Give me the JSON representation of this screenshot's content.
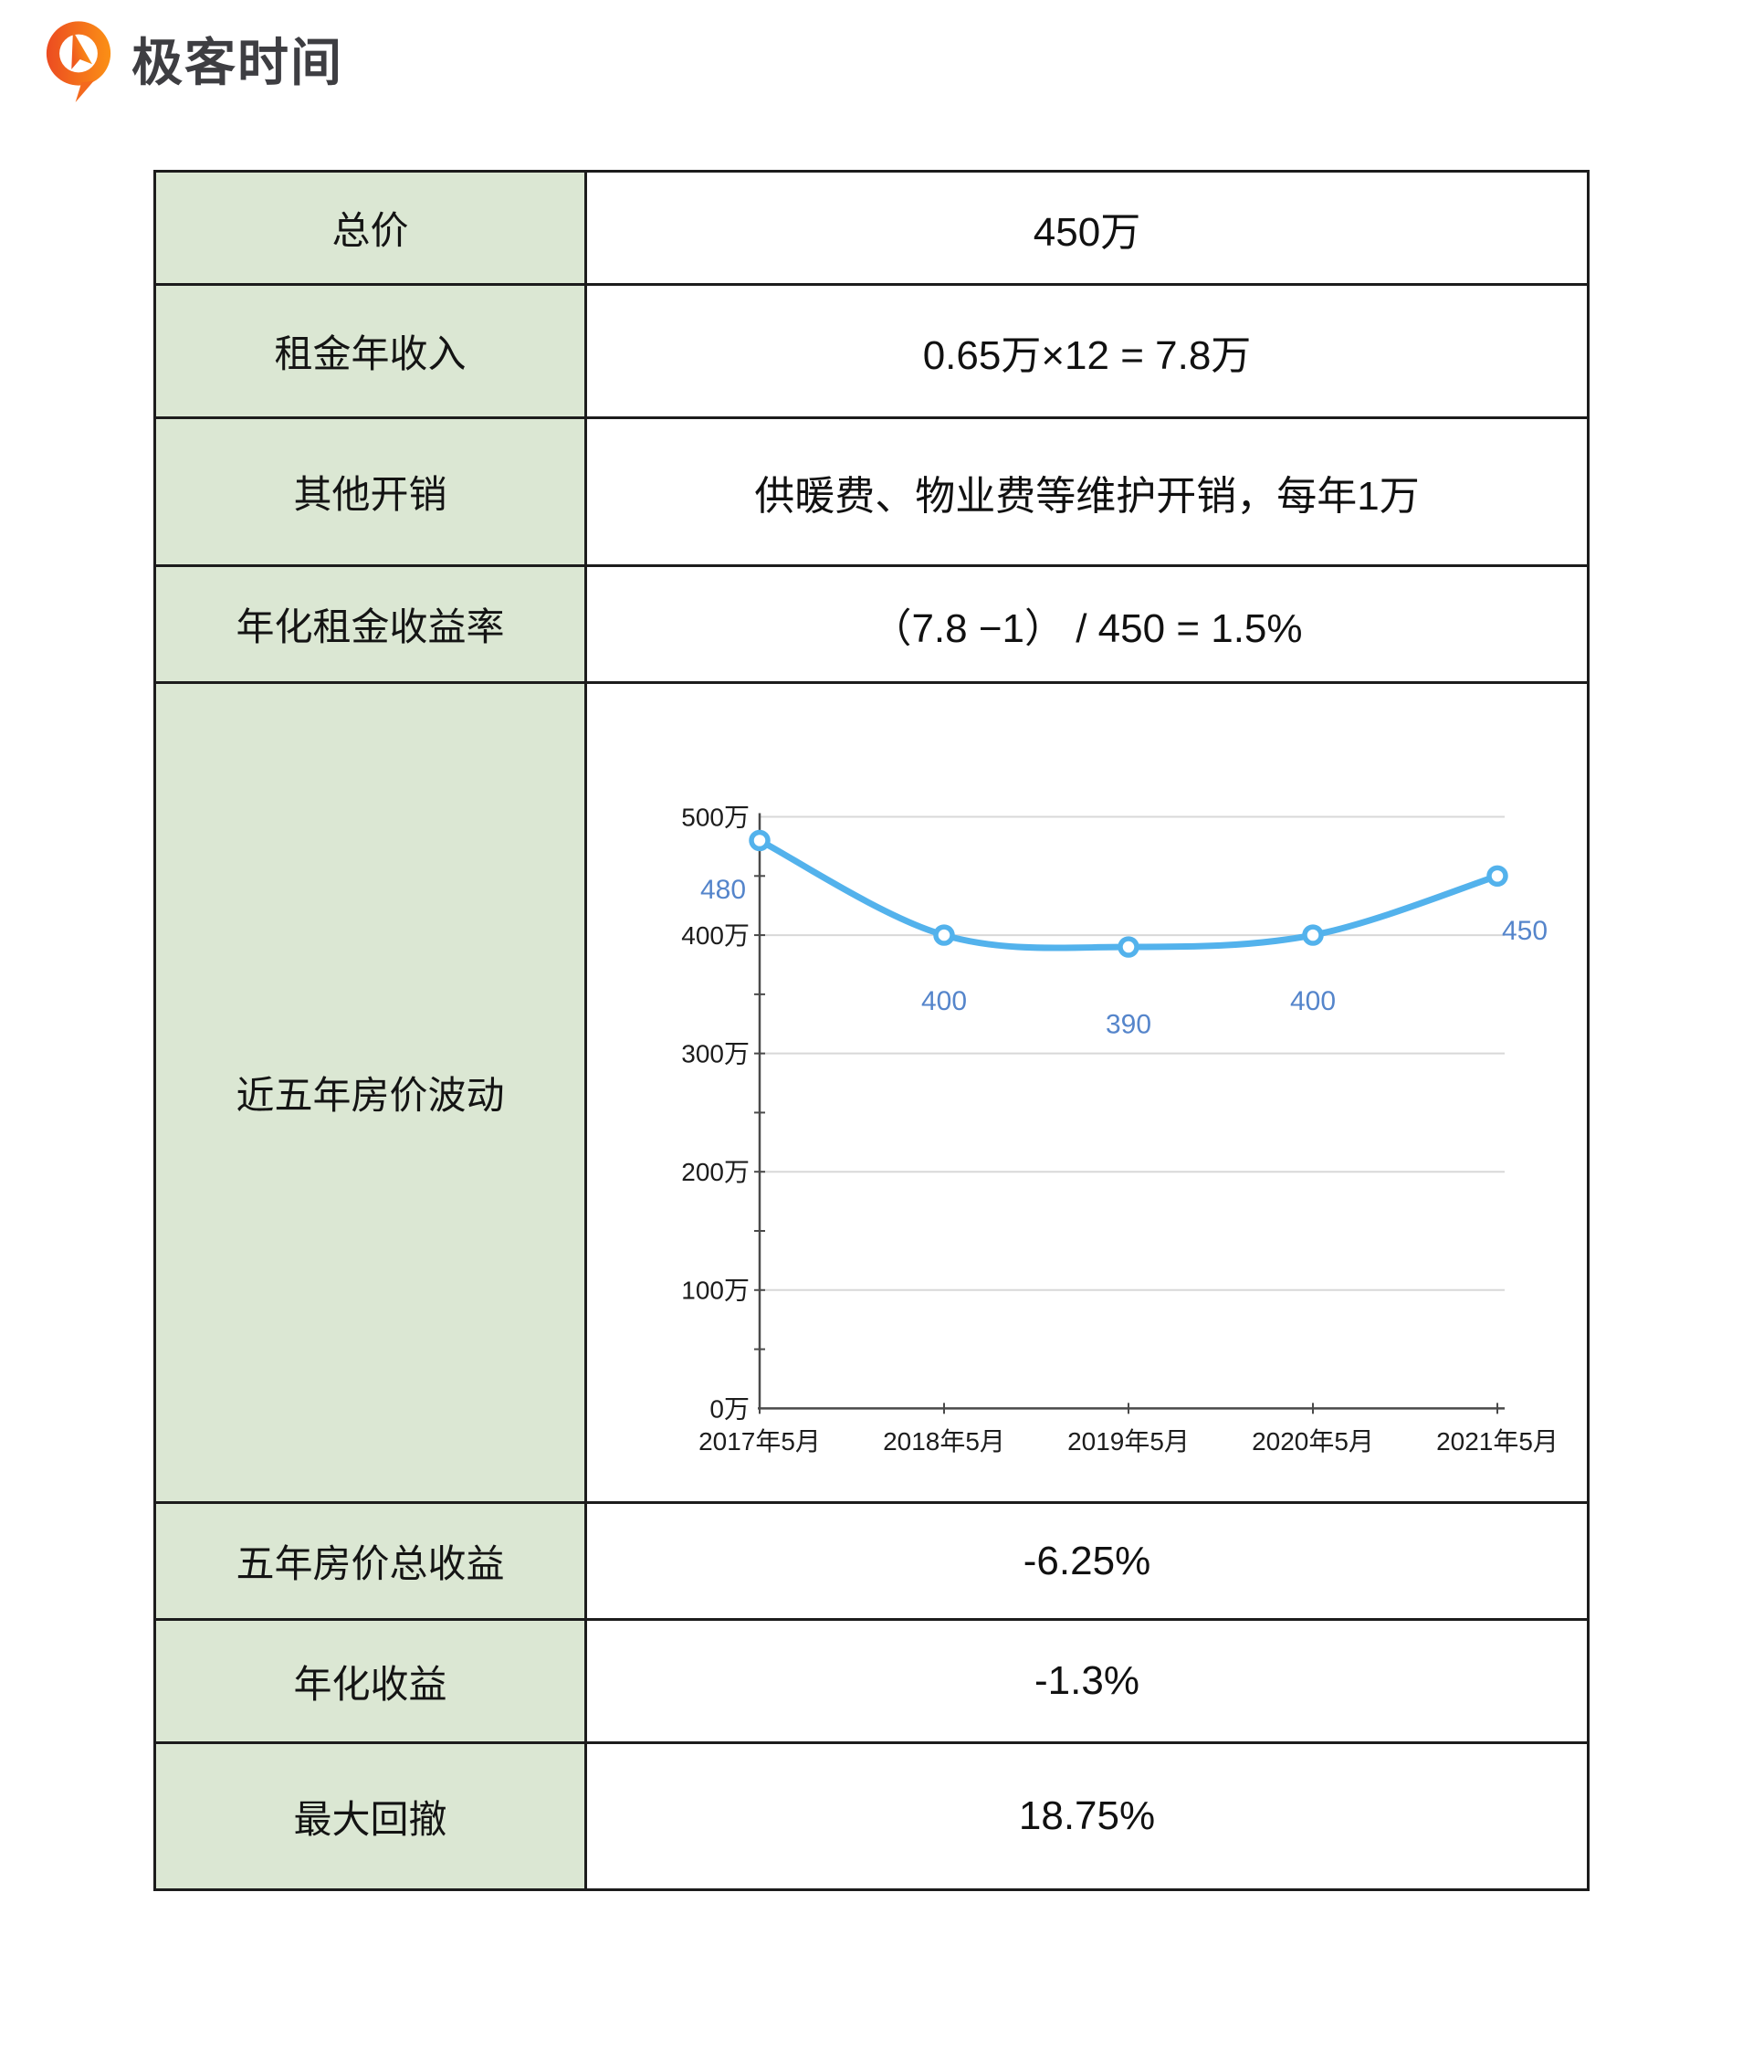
{
  "logo": {
    "brand_text": "极客时间",
    "icon": "geektime-speech-bubble-arrow-icon",
    "accent_color": "#f4691e"
  },
  "table": {
    "rows": [
      {
        "label": "总价",
        "value": "450万"
      },
      {
        "label": "租金年收入",
        "value": "0.65万×12 = 7.8万"
      },
      {
        "label": "其他开销",
        "value": "供暖费、物业费等维护开销，每年1万"
      },
      {
        "label": "年化租金收益率",
        "value": "（7.8 −1） / 450 = 1.5%"
      },
      {
        "label": "近五年房价波动",
        "value": ""
      },
      {
        "label": "五年房价总收益",
        "value": "-6.25%"
      },
      {
        "label": "年化收益",
        "value": "-1.3%"
      },
      {
        "label": "最大回撤",
        "value": "18.75%"
      }
    ],
    "header_fill_color": "#dbe7d3",
    "border_color": "#1c1c1c"
  },
  "chart_data": {
    "type": "line",
    "title": "近五年房价波动",
    "categories": [
      "2017年5月",
      "2018年5月",
      "2019年5月",
      "2020年5月",
      "2021年5月"
    ],
    "values": [
      480,
      400,
      390,
      400,
      450
    ],
    "point_labels": [
      "480",
      "400",
      "390",
      "400",
      "450"
    ],
    "y_tick_labels": [
      "500万",
      "400万",
      "300万",
      "200万",
      "100万",
      "0万"
    ],
    "ylim": [
      0,
      500
    ],
    "y_major_step": 100,
    "y_minor_step": 50,
    "grid": true,
    "legend": "none",
    "xlabel": "",
    "ylabel": "",
    "line_color": "#53b2ec",
    "marker_fill": "#ffffff",
    "data_label_color": "#5585cb",
    "axis_color": "#4a4a4a",
    "grid_color": "#d8d8d8",
    "tick_label_color": "#1c1c1c"
  }
}
